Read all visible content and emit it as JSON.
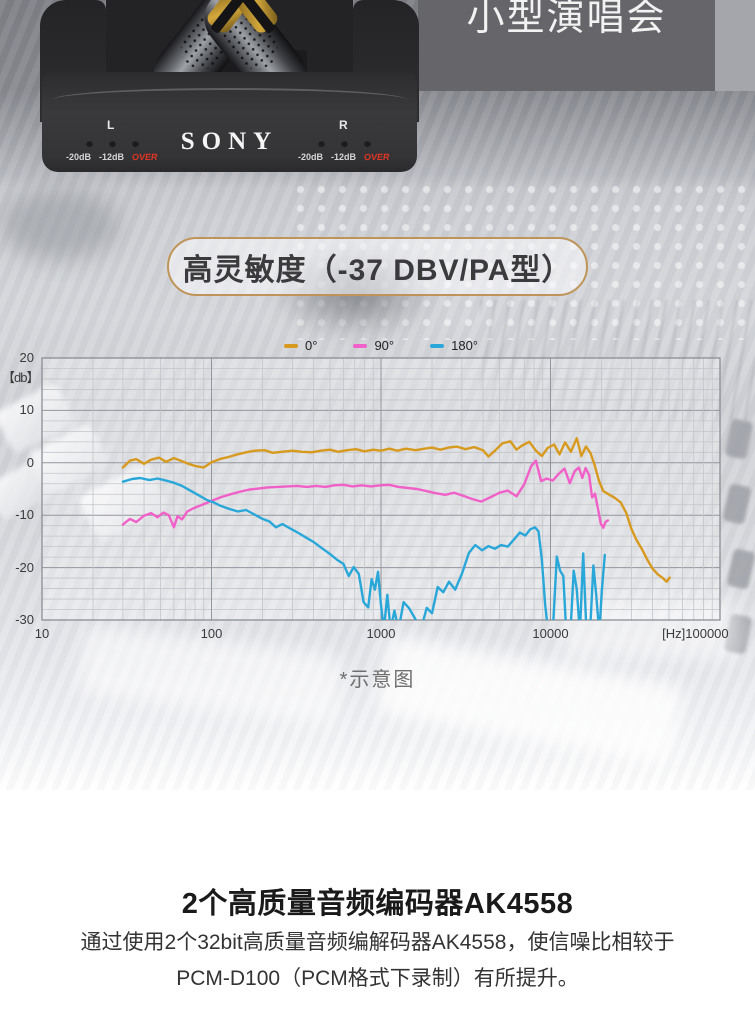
{
  "hero": {
    "tag_box": {
      "label": "小型演唱会"
    },
    "device": {
      "brand": "SONY",
      "left_channel": "L",
      "right_channel": "R",
      "meter_labels": [
        "-20dB",
        "-12dB",
        "OVER"
      ]
    },
    "badge": {
      "label": "高灵敏度（-37 DBV/PA型）"
    },
    "caption": "*示意图"
  },
  "chart_data": {
    "type": "line",
    "x_scale": "log",
    "x_range": [
      10,
      100000
    ],
    "y_range": [
      -30,
      20
    ],
    "y_unit_label": "【db】",
    "grid": {
      "minor_db_step": 2,
      "major_db_step": 10,
      "log_minor_verticals": true
    },
    "legend_position": "top-center",
    "y_ticks": [
      {
        "label": "20",
        "value": 20
      },
      {
        "label": "10",
        "value": 10
      },
      {
        "label": "0",
        "value": 0
      },
      {
        "label": "-10",
        "value": -10
      },
      {
        "label": "-20",
        "value": -20
      },
      {
        "label": "-30",
        "value": -30
      }
    ],
    "x_ticks": [
      {
        "label": "10",
        "value": 10
      },
      {
        "label": "100",
        "value": 100
      },
      {
        "label": "1000",
        "value": 1000
      },
      {
        "label": "10000",
        "value": 10000
      },
      {
        "label": "[Hz]100000",
        "value": 100000,
        "align": "right"
      }
    ],
    "series": [
      {
        "name": "0°",
        "color": "#D79A1E",
        "points": [
          [
            30,
            -0.9
          ],
          [
            33,
            0.4
          ],
          [
            36,
            0.7
          ],
          [
            40,
            -0.2
          ],
          [
            44,
            0.6
          ],
          [
            49,
            1.0
          ],
          [
            54,
            0.2
          ],
          [
            60,
            0.9
          ],
          [
            66,
            0.4
          ],
          [
            73,
            -0.2
          ],
          [
            80,
            -0.6
          ],
          [
            90,
            -0.9
          ],
          [
            100,
            0.1
          ],
          [
            112,
            0.7
          ],
          [
            126,
            1.1
          ],
          [
            142,
            1.6
          ],
          [
            160,
            2.0
          ],
          [
            180,
            2.3
          ],
          [
            205,
            2.4
          ],
          [
            230,
            1.9
          ],
          [
            260,
            2.1
          ],
          [
            300,
            2.3
          ],
          [
            340,
            2.1
          ],
          [
            390,
            2.0
          ],
          [
            440,
            2.3
          ],
          [
            500,
            2.5
          ],
          [
            560,
            2.1
          ],
          [
            630,
            2.4
          ],
          [
            710,
            2.6
          ],
          [
            800,
            2.2
          ],
          [
            900,
            2.5
          ],
          [
            1000,
            2.3
          ],
          [
            1120,
            2.7
          ],
          [
            1250,
            2.3
          ],
          [
            1400,
            2.7
          ],
          [
            1600,
            2.4
          ],
          [
            1800,
            2.7
          ],
          [
            2000,
            2.9
          ],
          [
            2240,
            2.5
          ],
          [
            2500,
            2.9
          ],
          [
            2800,
            3.1
          ],
          [
            3150,
            2.6
          ],
          [
            3550,
            3.0
          ],
          [
            4000,
            2.4
          ],
          [
            4300,
            1.2
          ],
          [
            4700,
            2.3
          ],
          [
            5200,
            3.7
          ],
          [
            5800,
            4.1
          ],
          [
            6300,
            2.5
          ],
          [
            6800,
            3.3
          ],
          [
            7500,
            4.0
          ],
          [
            8200,
            2.3
          ],
          [
            8900,
            1.3
          ],
          [
            9600,
            2.8
          ],
          [
            10500,
            3.5
          ],
          [
            11300,
            1.6
          ],
          [
            12200,
            3.9
          ],
          [
            13200,
            2.1
          ],
          [
            14300,
            4.7
          ],
          [
            15200,
            1.3
          ],
          [
            16200,
            3.1
          ],
          [
            17200,
            1.9
          ],
          [
            18200,
            -0.4
          ],
          [
            19300,
            -3.4
          ],
          [
            20500,
            -5.4
          ],
          [
            22000,
            -6.0
          ],
          [
            24000,
            -6.7
          ],
          [
            26000,
            -7.6
          ],
          [
            28000,
            -9.6
          ],
          [
            30000,
            -12.6
          ],
          [
            32000,
            -14.6
          ],
          [
            34500,
            -16.4
          ],
          [
            37000,
            -18.3
          ],
          [
            40000,
            -20.2
          ],
          [
            43000,
            -21.3
          ],
          [
            46000,
            -22.0
          ],
          [
            48500,
            -22.7
          ],
          [
            50500,
            -21.9
          ]
        ]
      },
      {
        "name": "90°",
        "color": "#F060C8",
        "points": [
          [
            30,
            -11.8
          ],
          [
            33,
            -10.7
          ],
          [
            36,
            -11.3
          ],
          [
            40,
            -10.1
          ],
          [
            44,
            -9.6
          ],
          [
            48,
            -10.4
          ],
          [
            52,
            -9.5
          ],
          [
            56,
            -10.0
          ],
          [
            60,
            -12.3
          ],
          [
            63,
            -10.2
          ],
          [
            67,
            -10.8
          ],
          [
            72,
            -9.3
          ],
          [
            78,
            -8.7
          ],
          [
            85,
            -8.2
          ],
          [
            93,
            -7.7
          ],
          [
            103,
            -7.1
          ],
          [
            115,
            -6.5
          ],
          [
            130,
            -6.0
          ],
          [
            148,
            -5.5
          ],
          [
            168,
            -5.1
          ],
          [
            190,
            -4.9
          ],
          [
            215,
            -4.7
          ],
          [
            245,
            -4.6
          ],
          [
            280,
            -4.5
          ],
          [
            320,
            -4.4
          ],
          [
            365,
            -4.6
          ],
          [
            415,
            -4.4
          ],
          [
            470,
            -4.6
          ],
          [
            530,
            -4.3
          ],
          [
            600,
            -4.2
          ],
          [
            680,
            -4.5
          ],
          [
            770,
            -4.3
          ],
          [
            870,
            -4.5
          ],
          [
            990,
            -4.3
          ],
          [
            1120,
            -4.2
          ],
          [
            1270,
            -4.6
          ],
          [
            1440,
            -4.8
          ],
          [
            1630,
            -5.0
          ],
          [
            1850,
            -5.4
          ],
          [
            2100,
            -5.8
          ],
          [
            2400,
            -6.1
          ],
          [
            2700,
            -5.7
          ],
          [
            3050,
            -6.3
          ],
          [
            3450,
            -6.9
          ],
          [
            3900,
            -7.4
          ],
          [
            4400,
            -6.6
          ],
          [
            5000,
            -5.7
          ],
          [
            5600,
            -5.3
          ],
          [
            6300,
            -6.4
          ],
          [
            7000,
            -4.1
          ],
          [
            7700,
            -0.6
          ],
          [
            8200,
            0.4
          ],
          [
            8800,
            -3.5
          ],
          [
            9500,
            -3.0
          ],
          [
            10300,
            -3.4
          ],
          [
            11200,
            -2.1
          ],
          [
            12100,
            -1.1
          ],
          [
            13000,
            -3.9
          ],
          [
            13900,
            -1.6
          ],
          [
            14700,
            -0.9
          ],
          [
            15400,
            -2.9
          ],
          [
            16100,
            -1.0
          ],
          [
            16900,
            -2.3
          ],
          [
            17600,
            -6.6
          ],
          [
            18300,
            -5.9
          ],
          [
            19100,
            -8.9
          ],
          [
            19800,
            -11.6
          ],
          [
            20500,
            -12.4
          ],
          [
            21100,
            -11.3
          ],
          [
            21800,
            -11.0
          ]
        ]
      },
      {
        "name": "180°",
        "color": "#2AA7D9",
        "points": [
          [
            30,
            -3.6
          ],
          [
            34,
            -3.1
          ],
          [
            38,
            -2.9
          ],
          [
            43,
            -3.3
          ],
          [
            48,
            -3.0
          ],
          [
            54,
            -3.4
          ],
          [
            60,
            -3.8
          ],
          [
            67,
            -4.4
          ],
          [
            75,
            -5.3
          ],
          [
            84,
            -6.2
          ],
          [
            94,
            -7.1
          ],
          [
            102,
            -7.5
          ],
          [
            113,
            -8.2
          ],
          [
            127,
            -8.8
          ],
          [
            143,
            -9.3
          ],
          [
            160,
            -9.0
          ],
          [
            180,
            -9.9
          ],
          [
            200,
            -10.7
          ],
          [
            220,
            -11.2
          ],
          [
            240,
            -12.3
          ],
          [
            262,
            -11.7
          ],
          [
            290,
            -12.5
          ],
          [
            322,
            -13.3
          ],
          [
            358,
            -14.2
          ],
          [
            400,
            -15.1
          ],
          [
            448,
            -16.3
          ],
          [
            500,
            -17.4
          ],
          [
            550,
            -18.5
          ],
          [
            600,
            -19.3
          ],
          [
            645,
            -21.6
          ],
          [
            690,
            -19.9
          ],
          [
            740,
            -21.2
          ],
          [
            790,
            -26.6
          ],
          [
            840,
            -27.6
          ],
          [
            880,
            -22.2
          ],
          [
            920,
            -24.2
          ],
          [
            960,
            -20.8
          ],
          [
            1000,
            -27.2
          ],
          [
            1040,
            -31.8
          ],
          [
            1090,
            -25.2
          ],
          [
            1140,
            -31.8
          ],
          [
            1200,
            -28.2
          ],
          [
            1270,
            -31.8
          ],
          [
            1360,
            -26.6
          ],
          [
            1460,
            -27.7
          ],
          [
            1580,
            -29.6
          ],
          [
            1720,
            -31.8
          ],
          [
            1860,
            -27.7
          ],
          [
            2000,
            -28.7
          ],
          [
            2160,
            -23.7
          ],
          [
            2330,
            -24.7
          ],
          [
            2520,
            -22.7
          ],
          [
            2740,
            -24.2
          ],
          [
            3000,
            -21.2
          ],
          [
            3300,
            -17.2
          ],
          [
            3600,
            -15.7
          ],
          [
            3950,
            -16.7
          ],
          [
            4300,
            -15.9
          ],
          [
            4700,
            -16.4
          ],
          [
            5100,
            -15.7
          ],
          [
            5600,
            -16.0
          ],
          [
            6100,
            -14.6
          ],
          [
            6600,
            -13.3
          ],
          [
            7100,
            -13.9
          ],
          [
            7600,
            -12.7
          ],
          [
            8100,
            -12.3
          ],
          [
            8500,
            -13.1
          ],
          [
            8900,
            -18.6
          ],
          [
            9300,
            -27.2
          ],
          [
            9700,
            -32.5
          ],
          [
            10300,
            -32.5
          ],
          [
            10900,
            -17.9
          ],
          [
            11400,
            -20.6
          ],
          [
            11900,
            -21.6
          ],
          [
            12400,
            -32.5
          ],
          [
            13100,
            -32.5
          ],
          [
            13700,
            -20.6
          ],
          [
            14300,
            -24.2
          ],
          [
            14900,
            -32.5
          ],
          [
            15600,
            -17.3
          ],
          [
            16300,
            -32.5
          ],
          [
            17100,
            -32.5
          ],
          [
            17900,
            -19.6
          ],
          [
            18600,
            -25.2
          ],
          [
            19400,
            -32.5
          ],
          [
            20100,
            -24.2
          ],
          [
            20900,
            -17.6
          ]
        ]
      }
    ]
  },
  "section": {
    "heading": "2个高质量音频编码器AK4558",
    "body_lines": [
      "通过使用2个32bit高质量音频编解码器AK4558，使信噪比相较于",
      "PCM-D100（PCM格式下录制）有所提升。"
    ]
  }
}
